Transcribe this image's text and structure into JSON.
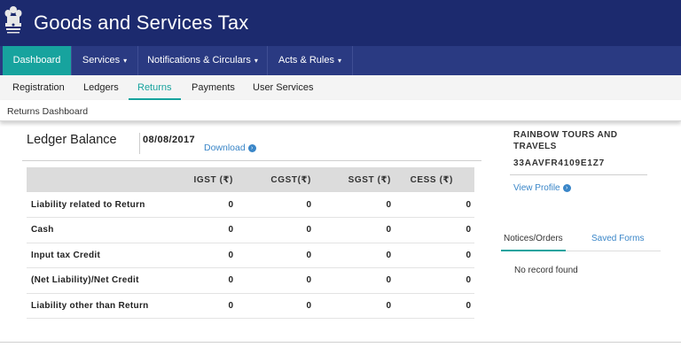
{
  "header": {
    "title": "Goods and Services Tax",
    "brand_color": "#1c2a6e"
  },
  "main_nav": {
    "items": [
      {
        "label": "Dashboard",
        "active": true
      },
      {
        "label": "Services",
        "dropdown": true
      },
      {
        "label": "Notifications & Circulars",
        "dropdown": true
      },
      {
        "label": "Acts & Rules",
        "dropdown": true
      }
    ],
    "caret": "▾",
    "active_color": "#17a39e"
  },
  "sub_nav": {
    "items": [
      {
        "label": "Registration"
      },
      {
        "label": "Ledgers"
      },
      {
        "label": "Returns",
        "active": true
      },
      {
        "label": "Payments"
      },
      {
        "label": "User Services"
      }
    ]
  },
  "breadcrumb": "Returns Dashboard",
  "ledger": {
    "title": "Ledger Balance",
    "date": "08/08/2017",
    "download_label": "Download",
    "download_icon": "arrow-circle-right-icon",
    "columns": [
      "",
      "IGST (₹)",
      "CGST(₹)",
      "SGST (₹)",
      "CESS (₹)"
    ],
    "rows": [
      {
        "label": "Liability related to Return",
        "values": [
          "0",
          "0",
          "0",
          "0"
        ]
      },
      {
        "label": "Cash",
        "values": [
          "0",
          "0",
          "0",
          "0"
        ]
      },
      {
        "label": "Input tax Credit",
        "values": [
          "0",
          "0",
          "0",
          "0"
        ]
      },
      {
        "label": "(Net Liability)/Net Credit",
        "values": [
          "0",
          "0",
          "0",
          "0"
        ]
      },
      {
        "label": "Liability other than Return",
        "values": [
          "0",
          "0",
          "0",
          "0"
        ]
      }
    ]
  },
  "profile": {
    "company_name": "RAINBOW TOURS AND TRAVELS",
    "gstin": "33AAVFR4109E1Z7",
    "view_profile_label": "View Profile"
  },
  "right_tabs": {
    "items": [
      {
        "label": "Notices/Orders",
        "active": true
      },
      {
        "label": "Saved Forms"
      }
    ],
    "empty_message": "No record found"
  }
}
